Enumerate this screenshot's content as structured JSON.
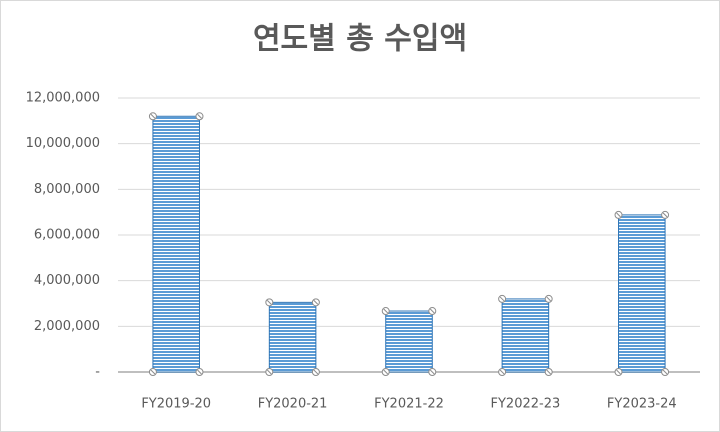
{
  "chart_data": {
    "type": "bar",
    "title": "연도별 총 수입액",
    "categories": [
      "FY2019-20",
      "FY2020-21",
      "FY2021-22",
      "FY2022-23",
      "FY2023-24"
    ],
    "values": [
      11200000,
      3050000,
      2670000,
      3200000,
      6880000
    ],
    "color": "#5b9bd5",
    "ylim": [
      0,
      12000000
    ],
    "yticks": [
      {
        "value": 0,
        "label": "-"
      },
      {
        "value": 2000000,
        "label": "2,000,000"
      },
      {
        "value": 4000000,
        "label": "4,000,000"
      },
      {
        "value": 6000000,
        "label": "6,000,000"
      },
      {
        "value": 8000000,
        "label": "8,000,000"
      },
      {
        "value": 10000000,
        "label": "10,000,000"
      },
      {
        "value": 12000000,
        "label": "12,000,000"
      }
    ],
    "grid": true
  }
}
